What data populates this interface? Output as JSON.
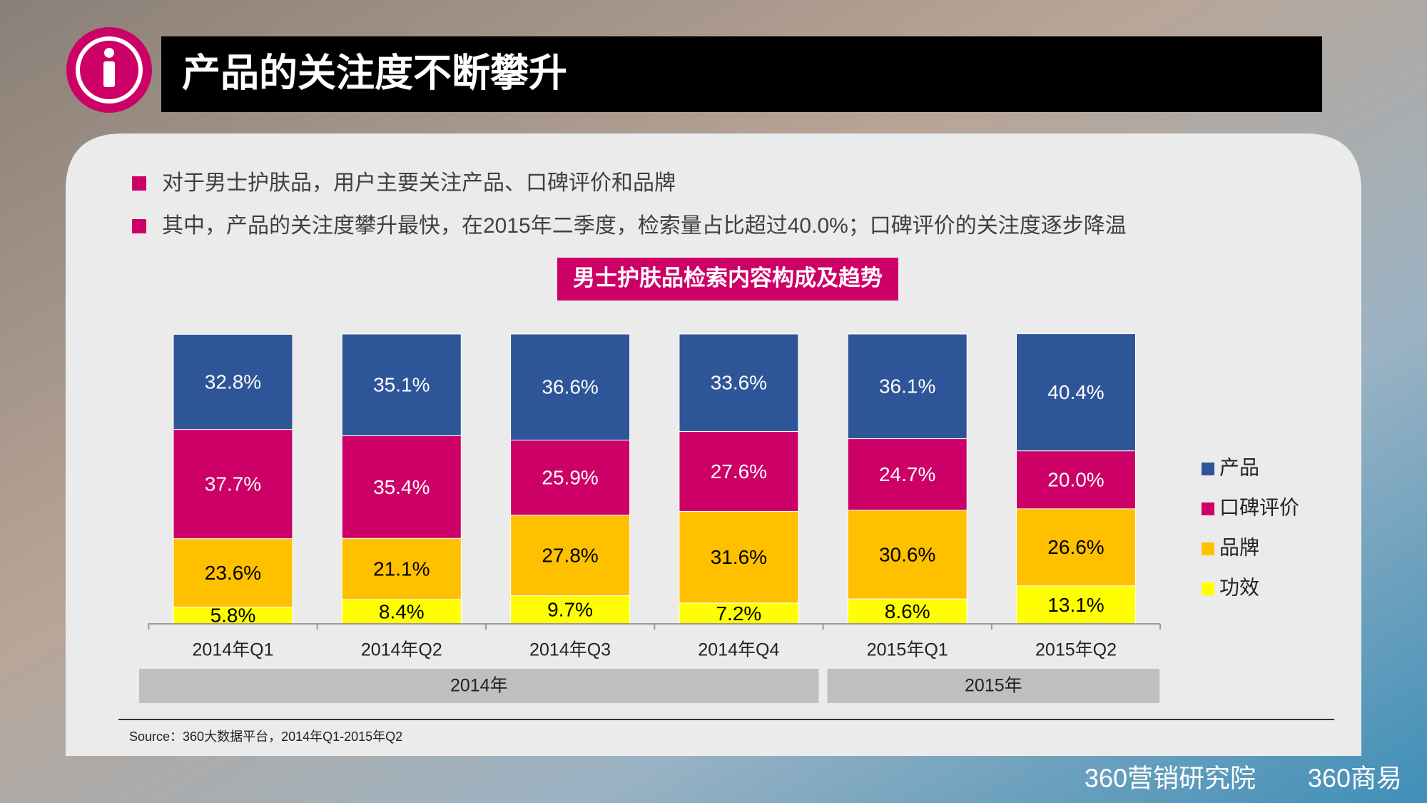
{
  "header": {
    "title": "产品的关注度不断攀升"
  },
  "bullets": [
    "对于男士护肤品，用户主要关注产品、口碑评价和品牌",
    "其中，产品的关注度攀升最快，在2015年二季度，检索量占比超过40.0%；口碑评价的关注度逐步降温"
  ],
  "chart_data": {
    "type": "stacked_bar",
    "title": "男士护肤品检索内容构成及趋势",
    "categories": [
      "2014年Q1",
      "2014年Q2",
      "2014年Q3",
      "2014年Q4",
      "2015年Q1",
      "2015年Q2"
    ],
    "groups": [
      {
        "label": "2014年",
        "span": 4
      },
      {
        "label": "2015年",
        "span": 2
      }
    ],
    "ylim": [
      0,
      100
    ],
    "series": [
      {
        "name": "产品",
        "color": "#2e5597",
        "values": [
          32.8,
          35.1,
          36.6,
          33.6,
          36.1,
          40.4
        ],
        "value_labels": [
          "32.8%",
          "35.1%",
          "36.6%",
          "33.6%",
          "36.1%",
          "40.4%"
        ]
      },
      {
        "name": "口碑评价",
        "color": "#cc0066",
        "values": [
          37.7,
          35.4,
          25.9,
          27.6,
          24.7,
          20.0
        ],
        "value_labels": [
          "37.7%",
          "35.4%",
          "25.9%",
          "27.6%",
          "24.7%",
          "20.0%"
        ]
      },
      {
        "name": "品牌",
        "color": "#ffc000",
        "values": [
          23.6,
          21.1,
          27.8,
          31.6,
          30.6,
          26.6
        ],
        "value_labels": [
          "23.6%",
          "21.1%",
          "27.8%",
          "31.6%",
          "30.6%",
          "26.6%"
        ]
      },
      {
        "name": "功效",
        "color": "#ffff00",
        "values": [
          5.8,
          8.4,
          9.7,
          7.2,
          8.6,
          13.1
        ],
        "value_labels": [
          "5.8%",
          "8.4%",
          "9.7%",
          "7.2%",
          "8.6%",
          "13.1%"
        ]
      }
    ],
    "source": "Source：360大数据平台，2014年Q1-2015年Q2"
  },
  "footer": {
    "logos": [
      "360营销研究院",
      "360商易"
    ]
  }
}
